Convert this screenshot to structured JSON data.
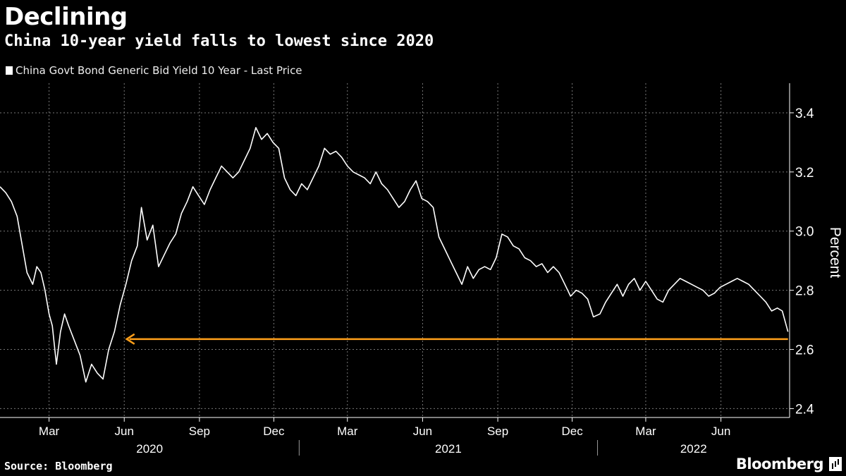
{
  "title": "Declining",
  "subtitle": "China 10-year yield falls to lowest since 2020",
  "source": "Source: Bloomberg",
  "logo": "Bloomberg",
  "colors": {
    "background": "#000000",
    "series": "#ffffff",
    "annotation": "#ff9f1a",
    "grid": "#777777"
  },
  "chart_data": {
    "type": "line",
    "title": "Declining",
    "subtitle": "China 10-year yield falls to lowest since 2020",
    "ylabel": "Percent",
    "ylim": [
      2.37,
      3.5
    ],
    "yticks": [
      2.4,
      2.6,
      2.8,
      3.0,
      3.2,
      3.4
    ],
    "ytick_labels": [
      "2.4",
      "2.6",
      "2.8",
      "3.0",
      "3.2",
      "3.4"
    ],
    "xlim": [
      "2020-01-01",
      "2022-08-24"
    ],
    "xticks": [
      {
        "date": "2020-03-01",
        "label": "Mar"
      },
      {
        "date": "2020-06-01",
        "label": "Jun"
      },
      {
        "date": "2020-09-01",
        "label": "Sep"
      },
      {
        "date": "2020-12-01",
        "label": "Dec"
      },
      {
        "date": "2021-03-01",
        "label": "Mar"
      },
      {
        "date": "2021-06-01",
        "label": "Jun"
      },
      {
        "date": "2021-09-01",
        "label": "Sep"
      },
      {
        "date": "2021-12-01",
        "label": "Dec"
      },
      {
        "date": "2022-03-01",
        "label": "Mar"
      },
      {
        "date": "2022-06-01",
        "label": "Jun"
      }
    ],
    "year_labels": [
      {
        "label": "2020",
        "start": "2020-01-01",
        "end": "2021-01-01"
      },
      {
        "label": "2021",
        "start": "2021-01-01",
        "end": "2022-01-01"
      },
      {
        "label": "2022",
        "start": "2022-01-01",
        "end": "2022-08-24"
      }
    ],
    "grid": true,
    "legend": "top-left",
    "series": [
      {
        "name": "China Govt Bond Generic Bid Yield 10 Year - Last Price",
        "points": [
          [
            "2020-01-01",
            3.15
          ],
          [
            "2020-01-08",
            3.13
          ],
          [
            "2020-01-15",
            3.1
          ],
          [
            "2020-01-22",
            3.05
          ],
          [
            "2020-02-03",
            2.86
          ],
          [
            "2020-02-10",
            2.82
          ],
          [
            "2020-02-15",
            2.88
          ],
          [
            "2020-02-20",
            2.86
          ],
          [
            "2020-02-25",
            2.8
          ],
          [
            "2020-03-01",
            2.72
          ],
          [
            "2020-03-05",
            2.68
          ],
          [
            "2020-03-10",
            2.55
          ],
          [
            "2020-03-15",
            2.66
          ],
          [
            "2020-03-20",
            2.72
          ],
          [
            "2020-03-25",
            2.68
          ],
          [
            "2020-04-01",
            2.63
          ],
          [
            "2020-04-08",
            2.58
          ],
          [
            "2020-04-15",
            2.49
          ],
          [
            "2020-04-22",
            2.55
          ],
          [
            "2020-04-29",
            2.52
          ],
          [
            "2020-05-06",
            2.5
          ],
          [
            "2020-05-13",
            2.6
          ],
          [
            "2020-05-20",
            2.66
          ],
          [
            "2020-05-27",
            2.75
          ],
          [
            "2020-06-03",
            2.82
          ],
          [
            "2020-06-10",
            2.9
          ],
          [
            "2020-06-17",
            2.95
          ],
          [
            "2020-06-22",
            3.08
          ],
          [
            "2020-06-29",
            2.97
          ],
          [
            "2020-07-06",
            3.02
          ],
          [
            "2020-07-13",
            2.88
          ],
          [
            "2020-07-20",
            2.92
          ],
          [
            "2020-07-27",
            2.96
          ],
          [
            "2020-08-03",
            2.99
          ],
          [
            "2020-08-10",
            3.06
          ],
          [
            "2020-08-17",
            3.1
          ],
          [
            "2020-08-24",
            3.15
          ],
          [
            "2020-08-31",
            3.12
          ],
          [
            "2020-09-07",
            3.09
          ],
          [
            "2020-09-14",
            3.14
          ],
          [
            "2020-09-21",
            3.18
          ],
          [
            "2020-09-28",
            3.22
          ],
          [
            "2020-10-05",
            3.2
          ],
          [
            "2020-10-12",
            3.18
          ],
          [
            "2020-10-19",
            3.2
          ],
          [
            "2020-10-26",
            3.24
          ],
          [
            "2020-11-02",
            3.28
          ],
          [
            "2020-11-09",
            3.35
          ],
          [
            "2020-11-16",
            3.31
          ],
          [
            "2020-11-23",
            3.33
          ],
          [
            "2020-11-30",
            3.3
          ],
          [
            "2020-12-07",
            3.28
          ],
          [
            "2020-12-14",
            3.18
          ],
          [
            "2020-12-21",
            3.14
          ],
          [
            "2020-12-28",
            3.12
          ],
          [
            "2021-01-04",
            3.16
          ],
          [
            "2021-01-11",
            3.14
          ],
          [
            "2021-01-18",
            3.18
          ],
          [
            "2021-01-25",
            3.22
          ],
          [
            "2021-02-01",
            3.28
          ],
          [
            "2021-02-08",
            3.26
          ],
          [
            "2021-02-15",
            3.27
          ],
          [
            "2021-02-22",
            3.25
          ],
          [
            "2021-03-01",
            3.22
          ],
          [
            "2021-03-08",
            3.2
          ],
          [
            "2021-03-15",
            3.19
          ],
          [
            "2021-03-22",
            3.18
          ],
          [
            "2021-03-29",
            3.16
          ],
          [
            "2021-04-05",
            3.2
          ],
          [
            "2021-04-12",
            3.16
          ],
          [
            "2021-04-19",
            3.14
          ],
          [
            "2021-04-26",
            3.11
          ],
          [
            "2021-05-03",
            3.08
          ],
          [
            "2021-05-10",
            3.1
          ],
          [
            "2021-05-17",
            3.14
          ],
          [
            "2021-05-24",
            3.17
          ],
          [
            "2021-05-31",
            3.11
          ],
          [
            "2021-06-07",
            3.1
          ],
          [
            "2021-06-14",
            3.08
          ],
          [
            "2021-06-21",
            2.98
          ],
          [
            "2021-06-28",
            2.94
          ],
          [
            "2021-07-05",
            2.9
          ],
          [
            "2021-07-12",
            2.86
          ],
          [
            "2021-07-19",
            2.82
          ],
          [
            "2021-07-26",
            2.88
          ],
          [
            "2021-08-02",
            2.84
          ],
          [
            "2021-08-09",
            2.87
          ],
          [
            "2021-08-16",
            2.88
          ],
          [
            "2021-08-23",
            2.87
          ],
          [
            "2021-08-30",
            2.91
          ],
          [
            "2021-09-06",
            2.99
          ],
          [
            "2021-09-13",
            2.98
          ],
          [
            "2021-09-20",
            2.95
          ],
          [
            "2021-09-27",
            2.94
          ],
          [
            "2021-10-04",
            2.91
          ],
          [
            "2021-10-11",
            2.9
          ],
          [
            "2021-10-18",
            2.88
          ],
          [
            "2021-10-25",
            2.89
          ],
          [
            "2021-11-01",
            2.86
          ],
          [
            "2021-11-08",
            2.88
          ],
          [
            "2021-11-15",
            2.86
          ],
          [
            "2021-11-22",
            2.82
          ],
          [
            "2021-11-29",
            2.78
          ],
          [
            "2021-12-06",
            2.8
          ],
          [
            "2021-12-13",
            2.79
          ],
          [
            "2021-12-20",
            2.77
          ],
          [
            "2021-12-27",
            2.71
          ],
          [
            "2022-01-04",
            2.72
          ],
          [
            "2022-01-11",
            2.76
          ],
          [
            "2022-01-18",
            2.79
          ],
          [
            "2022-01-25",
            2.82
          ],
          [
            "2022-02-01",
            2.78
          ],
          [
            "2022-02-08",
            2.82
          ],
          [
            "2022-02-15",
            2.84
          ],
          [
            "2022-02-22",
            2.8
          ],
          [
            "2022-03-01",
            2.83
          ],
          [
            "2022-03-08",
            2.8
          ],
          [
            "2022-03-15",
            2.77
          ],
          [
            "2022-03-22",
            2.76
          ],
          [
            "2022-03-29",
            2.8
          ],
          [
            "2022-04-05",
            2.82
          ],
          [
            "2022-04-12",
            2.84
          ],
          [
            "2022-04-19",
            2.83
          ],
          [
            "2022-04-26",
            2.82
          ],
          [
            "2022-05-03",
            2.81
          ],
          [
            "2022-05-10",
            2.8
          ],
          [
            "2022-05-17",
            2.78
          ],
          [
            "2022-05-24",
            2.79
          ],
          [
            "2022-05-31",
            2.81
          ],
          [
            "2022-06-07",
            2.82
          ],
          [
            "2022-06-14",
            2.83
          ],
          [
            "2022-06-21",
            2.84
          ],
          [
            "2022-06-28",
            2.83
          ],
          [
            "2022-07-05",
            2.82
          ],
          [
            "2022-07-12",
            2.8
          ],
          [
            "2022-07-19",
            2.78
          ],
          [
            "2022-07-26",
            2.76
          ],
          [
            "2022-08-02",
            2.73
          ],
          [
            "2022-08-09",
            2.74
          ],
          [
            "2022-08-15",
            2.73
          ],
          [
            "2022-08-22",
            2.66
          ]
        ]
      }
    ],
    "annotations": [
      {
        "type": "arrow",
        "y": 2.635,
        "x_from": "2022-08-22",
        "x_to": "2020-06-04",
        "direction": "left"
      }
    ]
  }
}
